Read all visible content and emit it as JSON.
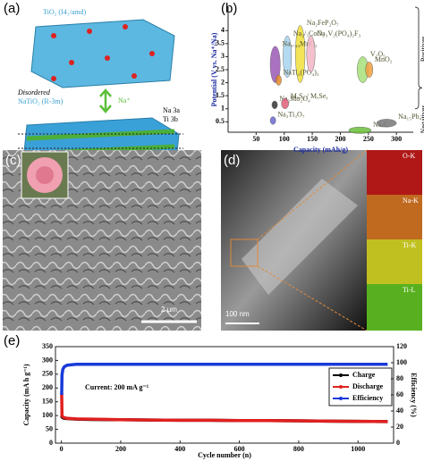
{
  "panels": {
    "a": {
      "label": "(a)",
      "top_label": "TiO₂ (I4₁/amd)",
      "ion": "Na⁺",
      "bottom_label_1": "Disordered",
      "bottom_label_2": "NaTiO₂ (R-3m)",
      "sites": [
        "Na 3a",
        "Ti 3b"
      ]
    },
    "c": {
      "label": "(c)",
      "scale": "2 μm"
    },
    "d": {
      "label": "(d)",
      "scale": "100 nm",
      "maps": [
        "O-K",
        "Na-K",
        "Ti-K",
        "Ti-L"
      ]
    }
  },
  "chart_data": [
    {
      "type": "ellipse-range",
      "label": "(b)",
      "xlabel": "Capacity (mAh/g)",
      "ylabel": "Potential (V vs. Na⁺/Na)",
      "xlim": [
        0,
        330
      ],
      "xticks": [
        50,
        100,
        150,
        200,
        250,
        300
      ],
      "ylim": [
        0.1,
        4.9
      ],
      "yticks": [
        0.5,
        1.0,
        1.5,
        2.0,
        2.5,
        3.0,
        3.5,
        4.0
      ],
      "side_labels": [
        "Positives",
        "Negatives"
      ],
      "series": [
        {
          "name": "Na₂FeP₂O₇",
          "color": "#f2e03a",
          "xrange": [
            120,
            137
          ],
          "yrange": [
            2.0,
            4.2
          ]
        },
        {
          "name": "Na₂/₃CoO₂",
          "color": "#a8d4f0",
          "xrange": [
            98,
            113
          ],
          "yrange": [
            2.2,
            3.8
          ]
        },
        {
          "name": "Na₀.₄₄MnO₂",
          "color": "#9b59b6",
          "xrange": [
            75,
            93
          ],
          "yrange": [
            2.0,
            3.4
          ]
        },
        {
          "name": "NaTi₂(PO₄)₃",
          "color": "#e58a2b",
          "xrange": [
            85,
            95
          ],
          "yrange": [
            1.9,
            2.3
          ]
        },
        {
          "name": "Na₃V₂(PO₄)₂F₃",
          "color": "#f4b6c6",
          "xrange": [
            140,
            155
          ],
          "yrange": [
            2.4,
            3.8
          ]
        },
        {
          "name": "Na₂Mo₂O₄",
          "color": "#333333",
          "xrange": [
            78,
            88
          ],
          "yrange": [
            1.0,
            1.3
          ]
        },
        {
          "name": "MₓSᵧ / MₓSeᵧ",
          "color": "#e0607a",
          "xrange": [
            95,
            108
          ],
          "yrange": [
            1.0,
            1.4
          ]
        },
        {
          "name": "Na₂Ti₃O₇",
          "color": "#6a6ad0",
          "xrange": [
            75,
            85
          ],
          "yrange": [
            0.4,
            0.7
          ]
        },
        {
          "name": "V₂O₅",
          "color": "#a8e07a",
          "xrange": [
            230,
            250
          ],
          "yrange": [
            2.0,
            3.0
          ]
        },
        {
          "name": "MnO₂",
          "color": "#f0a040",
          "xrange": [
            245,
            258
          ],
          "yrange": [
            2.2,
            2.8
          ]
        },
        {
          "name": "NaₓC",
          "color": "#6cbf3a",
          "xrange": [
            215,
            255
          ],
          "yrange": [
            0.05,
            0.3
          ]
        },
        {
          "name": "Na₁₅Pb₄",
          "color": "#777777",
          "xrange": [
            265,
            300
          ],
          "yrange": [
            0.3,
            0.6
          ]
        }
      ]
    },
    {
      "type": "line",
      "label": "(e)",
      "xlabel": "Cycle number (n)",
      "ylabel": "Capacity (mA h g⁻¹)",
      "y2label": "Efficiency (%)",
      "annotation": "Current: 200 mA g⁻¹",
      "legend": "upper right",
      "xlim": [
        -20,
        1120
      ],
      "xticks": [
        0,
        200,
        400,
        600,
        800,
        1000
      ],
      "ylim": [
        0,
        350
      ],
      "yticks": [
        0,
        50,
        100,
        150,
        200,
        250,
        300,
        350
      ],
      "y2lim": [
        0,
        120
      ],
      "y2ticks": [
        0,
        20,
        40,
        60,
        80,
        100,
        120
      ],
      "x": [
        1,
        2,
        5,
        10,
        20,
        50,
        100,
        200,
        300,
        400,
        500,
        600,
        700,
        800,
        900,
        1000,
        1100
      ],
      "series": [
        {
          "name": "Charge",
          "color": "#000000",
          "values": [
            100,
            95,
            92,
            90,
            89,
            87,
            86,
            85,
            84,
            83,
            83,
            82,
            82,
            81,
            80,
            79,
            78
          ]
        },
        {
          "name": "Discharge",
          "color": "#e02020",
          "values": [
            180,
            100,
            95,
            92,
            90,
            88,
            87,
            85,
            84,
            83,
            83,
            82,
            82,
            81,
            80,
            79,
            78
          ]
        },
        {
          "name": "Efficiency",
          "color": "#1a3ad8",
          "axis": "y2",
          "values": [
            60,
            85,
            92,
            95,
            97,
            98,
            98,
            98,
            98,
            98,
            98,
            98,
            98,
            98,
            98,
            98,
            98
          ]
        }
      ]
    }
  ]
}
